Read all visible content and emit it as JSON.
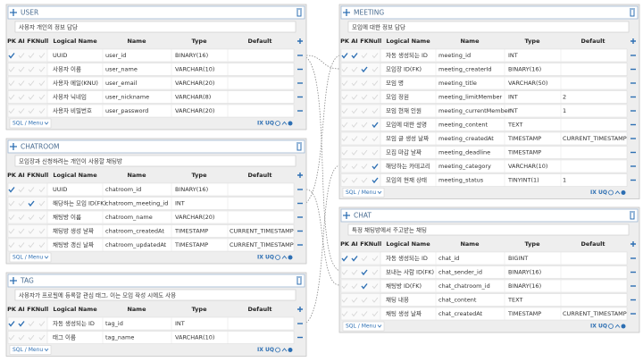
{
  "tables": [
    {
      "title": "USER",
      "comment": "사용자 개인의 정보 담당",
      "columns": [
        "PK",
        "AI",
        "FK",
        "Null",
        "Logical Name",
        "Name",
        "Type",
        "Default"
      ],
      "rows": [
        {
          "flags": [
            true,
            false,
            false,
            false
          ],
          "logical": "UUID",
          "name": "user_id",
          "type": "BINARY(16)"
        },
        {
          "flags": [
            false,
            false,
            false,
            false
          ],
          "logical": "사용자 이름",
          "name": "user_name",
          "type": "VARCHAR(10)"
        },
        {
          "flags": [
            false,
            false,
            false,
            false
          ],
          "logical": "사용자 메일(KNU)",
          "name": "user_email",
          "type": "VARCHAR(20)"
        },
        {
          "flags": [
            false,
            false,
            false,
            false
          ],
          "logical": "사용자 닉네임",
          "name": "user_nickname",
          "type": "VARCHAR(8)"
        },
        {
          "flags": [
            false,
            false,
            false,
            false
          ],
          "logical": "사용자 비밀번호",
          "name": "user_password",
          "type": "VARCHAR(20)"
        }
      ],
      "footer": "SQL / Menu",
      "tools": [
        "IX",
        "UQ"
      ]
    },
    {
      "title": "CHATROOM",
      "comment": "모임장과 신청하려는 개인이 사용할 채팅방",
      "columns": [
        "PK",
        "AI",
        "FK",
        "Null",
        "Logical Name",
        "Name",
        "Type",
        "Default"
      ],
      "rows": [
        {
          "flags": [
            true,
            false,
            false,
            false
          ],
          "logical": "UUID",
          "name": "chatroom_id",
          "type": "BINARY(16)"
        },
        {
          "flags": [
            false,
            false,
            true,
            false
          ],
          "logical": "해당하는 모임 ID(FK)",
          "name": "chatroom_meeting_id",
          "type": "INT"
        },
        {
          "flags": [
            false,
            false,
            false,
            false
          ],
          "logical": "채팅방 이름",
          "name": "chatroom_name",
          "type": "VARCHAR(20)"
        },
        {
          "flags": [
            false,
            false,
            false,
            false
          ],
          "logical": "채팅방 생성 날짜",
          "name": "chatroom_createdAt",
          "type": "TIMESTAMP",
          "default": "CURRENT_TIMESTAMP"
        },
        {
          "flags": [
            false,
            false,
            false,
            false
          ],
          "logical": "채팅방 갱신 날짜",
          "name": "chatroom_updatedAt",
          "type": "TIMESTAMP",
          "default": "CURRENT_TIMESTAMP"
        }
      ],
      "footer": "SQL / Menu",
      "tools": [
        "IX",
        "UQ"
      ]
    },
    {
      "title": "TAG",
      "comment": "사용자가 프로필에 등록할 관심 태그, 이는 모임 작성 시에도 사용",
      "columns": [
        "PK",
        "AI",
        "FK",
        "Null",
        "Logical Name",
        "Name",
        "Type",
        "Default"
      ],
      "rows": [
        {
          "flags": [
            true,
            true,
            false,
            false
          ],
          "logical": "자동 생성되는 ID",
          "name": "tag_id",
          "type": "INT"
        },
        {
          "flags": [
            false,
            false,
            false,
            false
          ],
          "logical": "태그 이름",
          "name": "tag_name",
          "type": "VARCHAR(10)"
        }
      ],
      "footer": "SQL / Menu",
      "tools": [
        "IX",
        "UQ"
      ]
    },
    {
      "title": "MEETING",
      "comment": "모임에 대한 정보 담당",
      "columns": [
        "PK",
        "AI",
        "FK",
        "Null",
        "Logical Name",
        "Name",
        "Type",
        "Default"
      ],
      "rows": [
        {
          "flags": [
            true,
            true,
            false,
            false
          ],
          "logical": "자동 생성되는 ID",
          "name": "meeting_id",
          "type": "INT"
        },
        {
          "flags": [
            false,
            false,
            true,
            false
          ],
          "logical": "모임장 ID(FK)",
          "name": "meeting_createrId",
          "type": "BINARY(16)"
        },
        {
          "flags": [
            false,
            false,
            false,
            false
          ],
          "logical": "모임 명",
          "name": "meeting_title",
          "type": "VARCHAR(50)"
        },
        {
          "flags": [
            false,
            false,
            false,
            false
          ],
          "logical": "모임 정원",
          "name": "meeting_limitMember",
          "type": "INT",
          "default": "2"
        },
        {
          "flags": [
            false,
            false,
            false,
            false
          ],
          "logical": "모임 현재 인원",
          "name": "meeting_currentMember",
          "type": "INT",
          "default": "1"
        },
        {
          "flags": [
            false,
            false,
            false,
            true
          ],
          "logical": "모임에 대한 설명",
          "name": "meeting_content",
          "type": "TEXT"
        },
        {
          "flags": [
            false,
            false,
            false,
            false
          ],
          "logical": "모임 글 생성 날짜",
          "name": "meeting_createdAt",
          "type": "TIMESTAMP",
          "default": "CURRENT_TIMESTAMP"
        },
        {
          "flags": [
            false,
            false,
            false,
            false
          ],
          "logical": "모집 마감 날짜",
          "name": "meeting_deadline",
          "type": "TIMESTAMP"
        },
        {
          "flags": [
            false,
            false,
            false,
            true
          ],
          "logical": "해당하는 카테고리",
          "name": "meeting_category",
          "type": "VARCHAR(10)"
        },
        {
          "flags": [
            false,
            false,
            false,
            true
          ],
          "logical": "모임의 현재 상태",
          "name": "meeting_status",
          "type": "TINYINT(1)",
          "default": "1"
        }
      ],
      "footer": "SQL / Menu",
      "tools": [
        "IX",
        "UQ"
      ]
    },
    {
      "title": "CHAT",
      "comment": "특정 채팅방에서 주고받는 채팅",
      "columns": [
        "PK",
        "AI",
        "FK",
        "Null",
        "Logical Name",
        "Name",
        "Type",
        "Default"
      ],
      "rows": [
        {
          "flags": [
            true,
            true,
            false,
            false
          ],
          "logical": "자동 생성되는 ID",
          "name": "chat_id",
          "type": "BIGINT"
        },
        {
          "flags": [
            false,
            false,
            true,
            false
          ],
          "logical": "보내는 사람 ID(FK)",
          "name": "chat_sender_id",
          "type": "BINARY(16)"
        },
        {
          "flags": [
            false,
            false,
            true,
            false
          ],
          "logical": "채팅방 ID(FK)",
          "name": "chat_chatroom_id",
          "type": "BINARY(16)"
        },
        {
          "flags": [
            false,
            false,
            false,
            false
          ],
          "logical": "채팅 내용",
          "name": "chat_content",
          "type": "TEXT"
        },
        {
          "flags": [
            false,
            false,
            false,
            false
          ],
          "logical": "채팅 생성 날짜",
          "name": "chat_createdAt",
          "type": "TIMESTAMP",
          "default": "CURRENT_TIMESTAMP"
        }
      ],
      "footer": "SQL / Menu",
      "tools": [
        "IX",
        "UQ"
      ]
    }
  ]
}
